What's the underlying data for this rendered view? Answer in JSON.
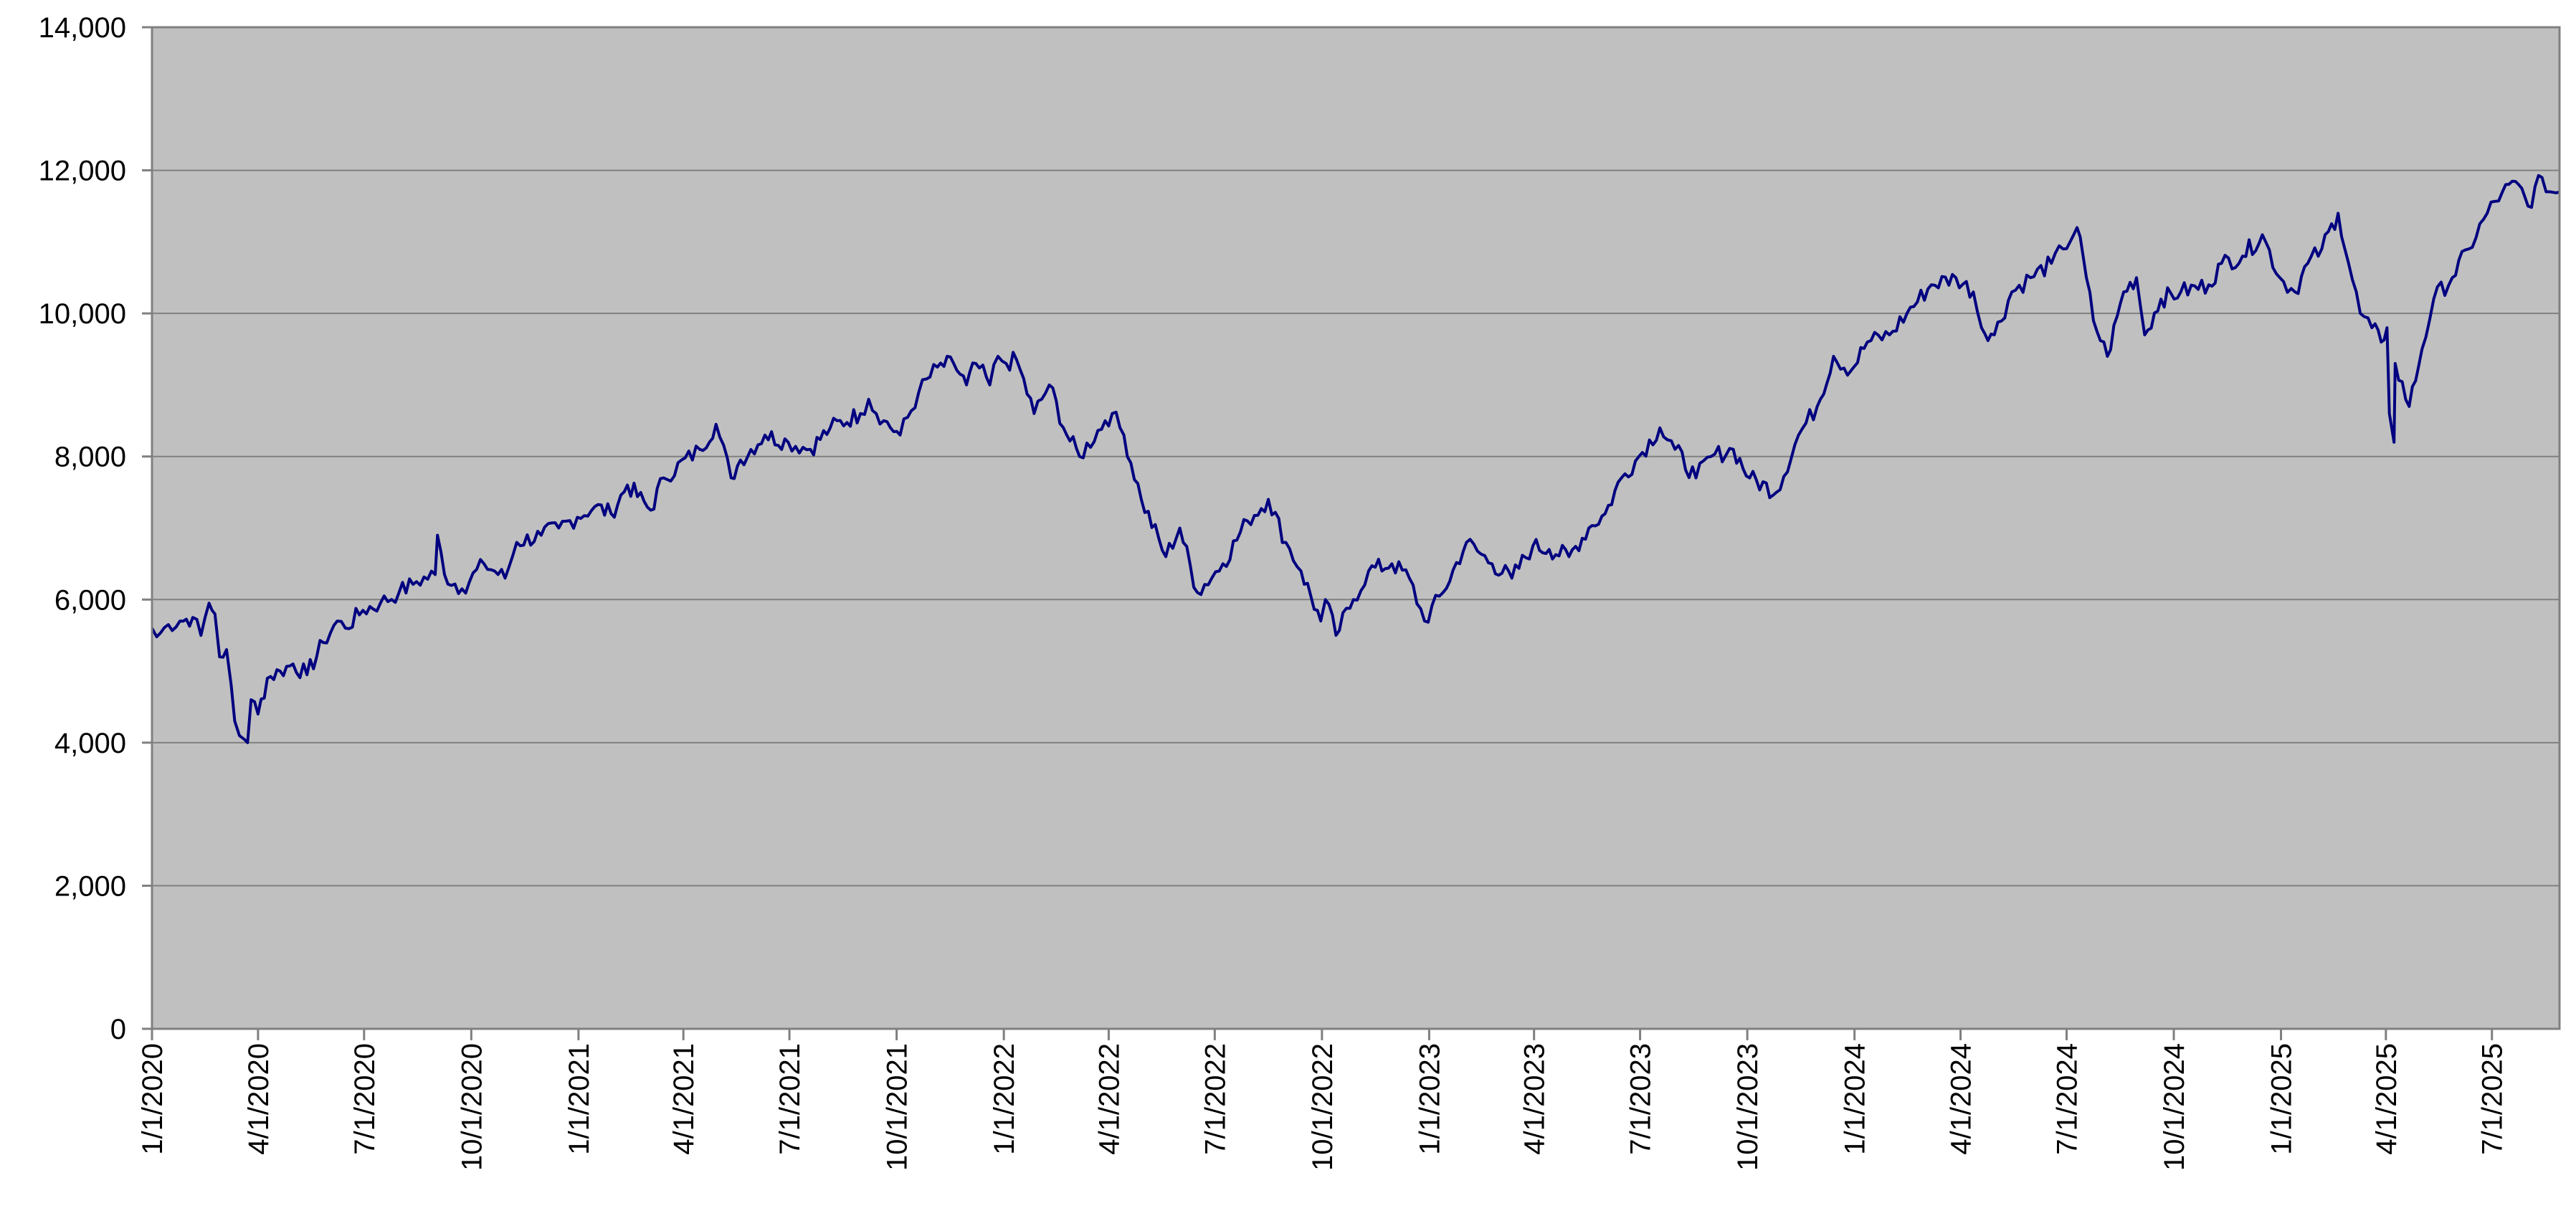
{
  "chart_data": {
    "type": "line",
    "title": "",
    "xlabel": "",
    "ylabel": "",
    "ylim": [
      0,
      14000
    ],
    "xlim": [
      "2020-01-01",
      "2025-08-28"
    ],
    "grid": "horizontal",
    "legend": "none",
    "y_ticks": [
      0,
      2000,
      4000,
      6000,
      8000,
      10000,
      12000,
      14000
    ],
    "y_tick_labels": [
      "0",
      "2,000",
      "4,000",
      "6,000",
      "8,000",
      "10,000",
      "12,000",
      "14,000"
    ],
    "x_ticks": [
      "2020-01-01",
      "2020-04-01",
      "2020-07-01",
      "2020-10-01",
      "2021-01-01",
      "2021-04-01",
      "2021-07-01",
      "2021-10-01",
      "2022-01-01",
      "2022-04-01",
      "2022-07-01",
      "2022-10-01",
      "2023-01-01",
      "2023-04-01",
      "2023-07-01",
      "2023-10-01",
      "2024-01-01",
      "2024-04-01",
      "2024-07-01",
      "2024-10-01",
      "2025-01-01",
      "2025-04-01",
      "2025-07-01"
    ],
    "x_tick_labels": [
      "1/1/2020",
      "4/1/2020",
      "7/1/2020",
      "10/1/2020",
      "1/1/2021",
      "4/1/2021",
      "7/1/2021",
      "10/1/2021",
      "1/1/2022",
      "4/1/2022",
      "7/1/2022",
      "10/1/2022",
      "1/1/2023",
      "4/1/2023",
      "7/1/2023",
      "10/1/2023",
      "1/1/2024",
      "4/1/2024",
      "7/1/2024",
      "10/1/2024",
      "1/1/2025",
      "4/1/2025",
      "7/1/2025"
    ],
    "series": [
      {
        "name": "",
        "points": [
          [
            "2020-01-01",
            5600
          ],
          [
            "2020-01-05",
            5480
          ],
          [
            "2020-01-15",
            5650
          ],
          [
            "2020-01-25",
            5700
          ],
          [
            "2020-02-05",
            5750
          ],
          [
            "2020-02-12",
            5500
          ],
          [
            "2020-02-19",
            5950
          ],
          [
            "2020-02-24",
            5800
          ],
          [
            "2020-02-28",
            5200
          ],
          [
            "2020-03-05",
            5300
          ],
          [
            "2020-03-09",
            4800
          ],
          [
            "2020-03-12",
            4300
          ],
          [
            "2020-03-16",
            4100
          ],
          [
            "2020-03-20",
            4050
          ],
          [
            "2020-03-23",
            4000
          ],
          [
            "2020-03-26",
            4600
          ],
          [
            "2020-04-01",
            4400
          ],
          [
            "2020-04-09",
            4900
          ],
          [
            "2020-04-20",
            5000
          ],
          [
            "2020-05-01",
            5100
          ],
          [
            "2020-05-13",
            4950
          ],
          [
            "2020-05-27",
            5400
          ],
          [
            "2020-06-08",
            5700
          ],
          [
            "2020-06-15",
            5600
          ],
          [
            "2020-06-30",
            5850
          ],
          [
            "2020-07-15",
            5950
          ],
          [
            "2020-07-31",
            6100
          ],
          [
            "2020-08-15",
            6250
          ],
          [
            "2020-08-31",
            6350
          ],
          [
            "2020-09-02",
            6900
          ],
          [
            "2020-09-08",
            6350
          ],
          [
            "2020-09-23",
            6150
          ],
          [
            "2020-10-12",
            6500
          ],
          [
            "2020-10-30",
            6300
          ],
          [
            "2020-11-09",
            6800
          ],
          [
            "2020-11-30",
            6900
          ],
          [
            "2020-12-15",
            7000
          ],
          [
            "2020-12-31",
            7150
          ],
          [
            "2021-01-15",
            7300
          ],
          [
            "2021-01-29",
            7200
          ],
          [
            "2021-02-12",
            7600
          ],
          [
            "2021-03-04",
            7250
          ],
          [
            "2021-03-15",
            7700
          ],
          [
            "2021-04-15",
            8100
          ],
          [
            "2021-04-29",
            8450
          ],
          [
            "2021-05-12",
            7700
          ],
          [
            "2021-05-20",
            7950
          ],
          [
            "2021-06-10",
            8300
          ],
          [
            "2021-06-30",
            8200
          ],
          [
            "2021-07-19",
            8100
          ],
          [
            "2021-08-05",
            8400
          ],
          [
            "2021-08-31",
            8600
          ],
          [
            "2021-09-07",
            8800
          ],
          [
            "2021-09-20",
            8500
          ],
          [
            "2021-10-04",
            8300
          ],
          [
            "2021-10-20",
            8900
          ],
          [
            "2021-11-05",
            9250
          ],
          [
            "2021-11-19",
            9300
          ],
          [
            "2021-11-30",
            9000
          ],
          [
            "2021-12-08",
            9300
          ],
          [
            "2021-12-20",
            9000
          ],
          [
            "2021-12-27",
            9400
          ],
          [
            "2022-01-03",
            9300
          ],
          [
            "2022-01-12",
            9350
          ],
          [
            "2022-01-27",
            8600
          ],
          [
            "2022-02-09",
            9000
          ],
          [
            "2022-02-24",
            8300
          ],
          [
            "2022-03-07",
            8000
          ],
          [
            "2022-03-29",
            8500
          ],
          [
            "2022-04-04",
            8600
          ],
          [
            "2022-04-14",
            8300
          ],
          [
            "2022-04-29",
            7400
          ],
          [
            "2022-05-20",
            6600
          ],
          [
            "2022-06-01",
            7000
          ],
          [
            "2022-06-16",
            6100
          ],
          [
            "2022-07-08",
            6500
          ],
          [
            "2022-07-29",
            7100
          ],
          [
            "2022-08-16",
            7400
          ],
          [
            "2022-08-31",
            6800
          ],
          [
            "2022-09-13",
            6400
          ],
          [
            "2022-09-30",
            5700
          ],
          [
            "2022-10-04",
            6000
          ],
          [
            "2022-10-13",
            5500
          ],
          [
            "2022-10-28",
            6000
          ],
          [
            "2022-11-10",
            6400
          ],
          [
            "2022-11-30",
            6500
          ],
          [
            "2022-12-15",
            6300
          ],
          [
            "2022-12-28",
            5700
          ],
          [
            "2023-01-13",
            6100
          ],
          [
            "2023-02-02",
            6800
          ],
          [
            "2023-02-24",
            6500
          ],
          [
            "2023-03-13",
            6300
          ],
          [
            "2023-03-31",
            6750
          ],
          [
            "2023-04-14",
            6700
          ],
          [
            "2023-05-01",
            6600
          ],
          [
            "2023-05-18",
            7000
          ],
          [
            "2023-06-01",
            7200
          ],
          [
            "2023-06-15",
            7700
          ],
          [
            "2023-06-30",
            8000
          ],
          [
            "2023-07-18",
            8400
          ],
          [
            "2023-07-31",
            8100
          ],
          [
            "2023-08-18",
            7700
          ],
          [
            "2023-08-31",
            8000
          ],
          [
            "2023-09-19",
            8100
          ],
          [
            "2023-10-03",
            7700
          ],
          [
            "2023-10-26",
            7500
          ],
          [
            "2023-11-14",
            8300
          ],
          [
            "2023-11-30",
            8700
          ],
          [
            "2023-12-14",
            9400
          ],
          [
            "2023-12-29",
            9200
          ],
          [
            "2024-01-12",
            9600
          ],
          [
            "2024-01-31",
            9700
          ],
          [
            "2024-02-15",
            10000
          ],
          [
            "2024-03-07",
            10400
          ],
          [
            "2024-03-28",
            10500
          ],
          [
            "2024-04-12",
            10300
          ],
          [
            "2024-04-19",
            9800
          ],
          [
            "2024-04-30",
            9700
          ],
          [
            "2024-05-15",
            10300
          ],
          [
            "2024-05-31",
            10500
          ],
          [
            "2024-06-18",
            10700
          ],
          [
            "2024-06-28",
            10900
          ],
          [
            "2024-07-10",
            11200
          ],
          [
            "2024-07-18",
            10500
          ],
          [
            "2024-07-24",
            9900
          ],
          [
            "2024-08-05",
            9400
          ],
          [
            "2024-08-19",
            10300
          ],
          [
            "2024-08-30",
            10500
          ],
          [
            "2024-09-06",
            9700
          ],
          [
            "2024-09-20",
            10200
          ],
          [
            "2024-10-07",
            10300
          ],
          [
            "2024-10-31",
            10400
          ],
          [
            "2024-11-11",
            10700
          ],
          [
            "2024-11-29",
            10800
          ],
          [
            "2024-12-16",
            11100
          ],
          [
            "2024-12-31",
            10500
          ],
          [
            "2025-01-13",
            10300
          ],
          [
            "2025-01-24",
            10700
          ],
          [
            "2025-02-05",
            10900
          ],
          [
            "2025-02-19",
            11400
          ],
          [
            "2025-02-28",
            10700
          ],
          [
            "2025-03-10",
            10000
          ],
          [
            "2025-03-20",
            9800
          ],
          [
            "2025-03-28",
            9600
          ],
          [
            "2025-04-02",
            9800
          ],
          [
            "2025-04-04",
            8600
          ],
          [
            "2025-04-08",
            8200
          ],
          [
            "2025-04-09",
            9300
          ],
          [
            "2025-04-21",
            8700
          ],
          [
            "2025-05-02",
            9500
          ],
          [
            "2025-05-12",
            10200
          ],
          [
            "2025-05-28",
            10500
          ],
          [
            "2025-06-11",
            10900
          ],
          [
            "2025-06-27",
            11400
          ],
          [
            "2025-07-10",
            11700
          ],
          [
            "2025-07-24",
            11800
          ],
          [
            "2025-08-01",
            11500
          ],
          [
            "2025-08-13",
            11900
          ],
          [
            "2025-08-20",
            11700
          ],
          [
            "2025-08-28",
            11700
          ]
        ]
      }
    ],
    "colors": {
      "plot_background": "#c0c0c0",
      "line": "#000080",
      "gridline": "#808080",
      "axis": "#808080"
    }
  }
}
